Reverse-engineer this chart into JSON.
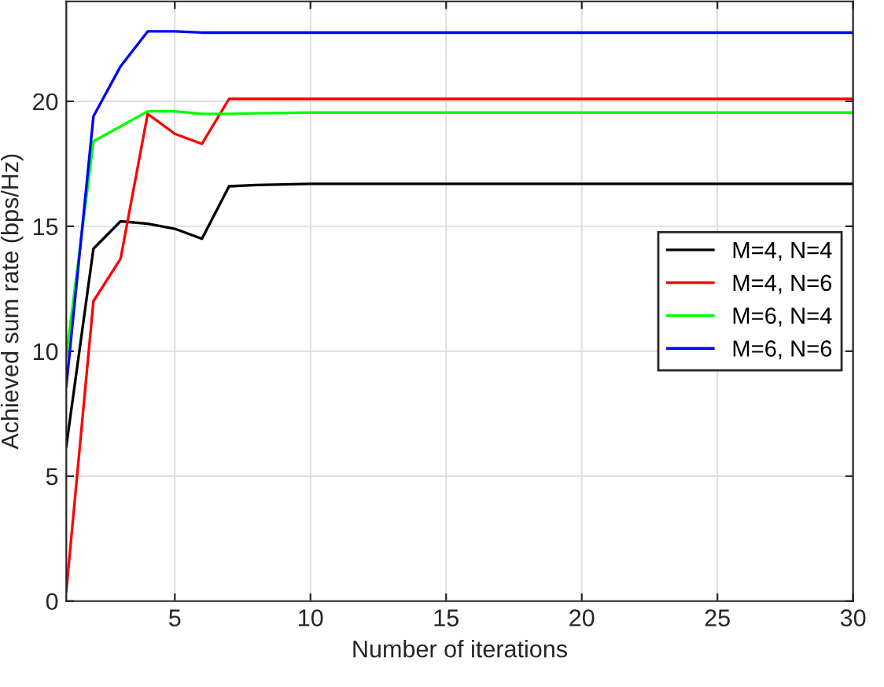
{
  "chart_data": {
    "type": "line",
    "xlabel": "Number of iterations",
    "ylabel": "Achieved sum rate (bps/Hz)",
    "x": [
      1,
      2,
      3,
      4,
      5,
      6,
      7,
      8,
      10,
      15,
      20,
      25,
      30
    ],
    "series": [
      {
        "name": "M=4, N=4",
        "color": "#000000",
        "values": [
          6.2,
          14.1,
          15.2,
          15.1,
          14.9,
          14.5,
          16.6,
          16.65,
          16.7,
          16.7,
          16.7,
          16.7,
          16.7
        ]
      },
      {
        "name": "M=4, N=6",
        "color": "#ff0000",
        "values": [
          0.4,
          12.0,
          13.7,
          19.5,
          18.7,
          18.3,
          20.1,
          20.1,
          20.1,
          20.1,
          20.1,
          20.1,
          20.1
        ]
      },
      {
        "name": "M=6, N=4",
        "color": "#00ff00",
        "values": [
          9.8,
          18.4,
          19.0,
          19.6,
          19.6,
          19.5,
          19.5,
          19.52,
          19.55,
          19.55,
          19.55,
          19.55,
          19.55
        ]
      },
      {
        "name": "M=6, N=6",
        "color": "#0000ff",
        "values": [
          8.6,
          19.4,
          21.4,
          22.8,
          22.8,
          22.75,
          22.75,
          22.75,
          22.75,
          22.75,
          22.75,
          22.75,
          22.75
        ]
      }
    ],
    "xlim": [
      1,
      30
    ],
    "ylim": [
      0,
      24
    ],
    "xticks": [
      5,
      10,
      15,
      20,
      25,
      30
    ],
    "yticks": [
      0,
      5,
      10,
      15,
      20
    ],
    "grid": true,
    "legend": "center right",
    "marker": "none",
    "line_style": "solid"
  }
}
